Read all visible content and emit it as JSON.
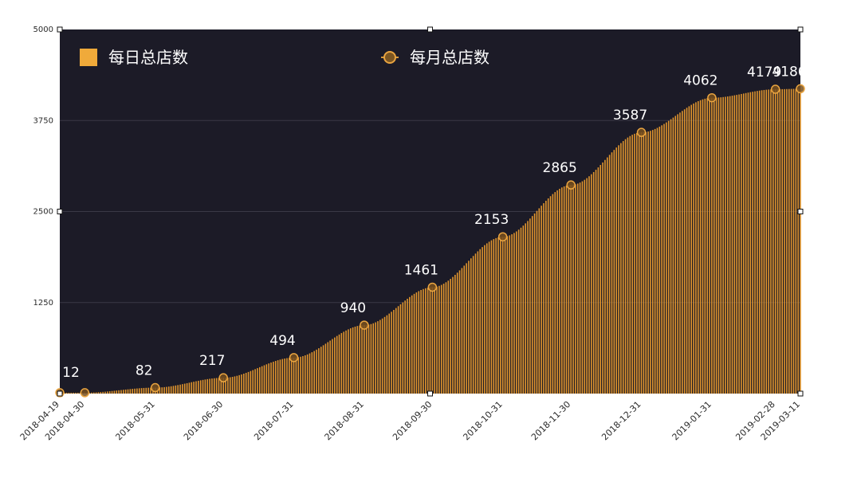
{
  "chart_data": {
    "type": "bar",
    "title": "",
    "xlabel": "",
    "ylabel": "",
    "ylim": [
      0,
      5000
    ],
    "y_ticks": [
      5000,
      3750,
      2500,
      1250
    ],
    "grid": true,
    "legend_position": "top",
    "x_range": [
      "2018-04-19",
      "2019-03-11"
    ],
    "x_tick_labels": [
      "2018-04-19",
      "2018-04-30",
      "2018-05-31",
      "2018-06-30",
      "2018-07-31",
      "2018-08-31",
      "2018-09-30",
      "2018-10-31",
      "2018-11-30",
      "2018-12-31",
      "2019-01-31",
      "2019-02-28",
      "2019-03-11"
    ],
    "series": [
      {
        "name": "每日总店数",
        "kind": "bar",
        "color": "#e2962e",
        "description_values": "daily totals, interpolated between monthly points"
      },
      {
        "name": "每月总店数",
        "kind": "point",
        "color": "#d89a3c",
        "x": [
          "2018-04-19",
          "2018-04-30",
          "2018-05-31",
          "2018-06-30",
          "2018-07-31",
          "2018-08-31",
          "2018-09-30",
          "2018-10-31",
          "2018-11-30",
          "2018-12-31",
          "2019-01-31",
          "2019-02-28",
          "2019-03-11"
        ],
        "values": [
          12,
          12,
          82,
          217,
          494,
          940,
          1461,
          2153,
          2865,
          3587,
          4062,
          4179,
          4186
        ],
        "labels": [
          "12",
          "",
          "82",
          "217",
          "494",
          "940",
          "1461",
          "2153",
          "2865",
          "3587",
          "4062",
          "4179",
          "4186"
        ]
      }
    ],
    "colors": {
      "plot_background": "#1c1b27",
      "bar": "#e2962e",
      "point_stroke": "#e9a440",
      "label_text": "#ffffff",
      "legend_text": "#ffffff",
      "axis_text": "#2a2a2a"
    }
  }
}
